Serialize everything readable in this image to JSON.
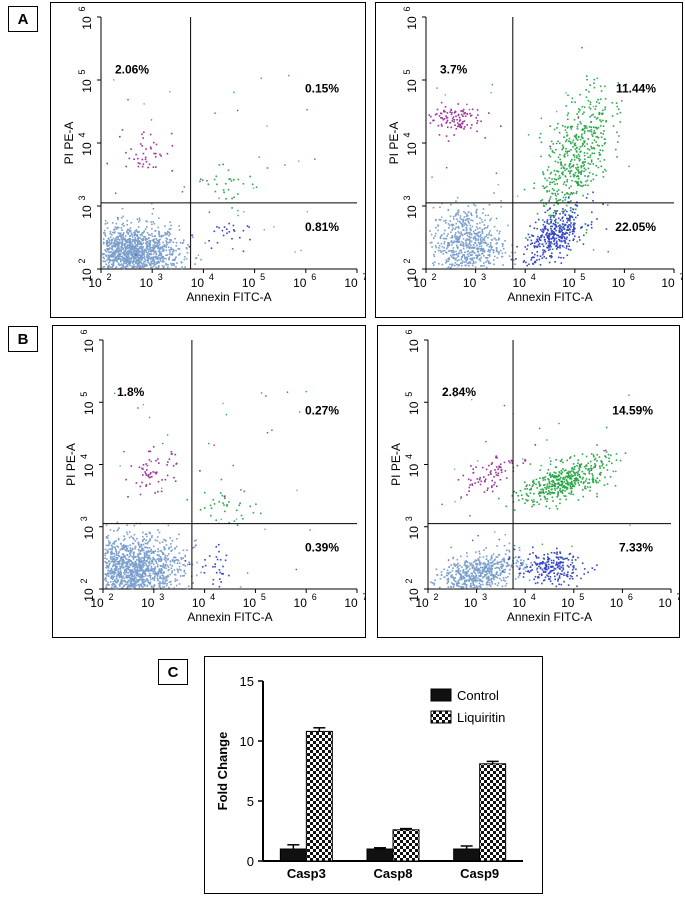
{
  "panels": {
    "a": "A",
    "b": "B",
    "c": "C"
  },
  "flow": {
    "xlabel": "Annexin FITC-A",
    "ylabel": "PI PE-A",
    "xticks": [
      {
        "base": "10",
        "exp": "2"
      },
      {
        "base": "10",
        "exp": "3"
      },
      {
        "base": "10",
        "exp": "4"
      },
      {
        "base": "10",
        "exp": "5"
      },
      {
        "base": "10",
        "exp": "6"
      },
      {
        "base": "10",
        "exp": "7"
      }
    ],
    "yticks": [
      {
        "base": "10",
        "exp": "2"
      },
      {
        "base": "10",
        "exp": "3"
      },
      {
        "base": "10",
        "exp": "4"
      },
      {
        "base": "10",
        "exp": "5"
      },
      {
        "base": "10",
        "exp": "6"
      }
    ],
    "plots": [
      {
        "ul": "2.06%",
        "ur": "0.15%",
        "lr": "0.81%"
      },
      {
        "ul": "3.7%",
        "ur": "11.44%",
        "lr": "22.05%"
      },
      {
        "ul": "1.8%",
        "ur": "0.27%",
        "lr": "0.39%"
      },
      {
        "ul": "2.84%",
        "ur": "14.59%",
        "lr": "7.33%"
      }
    ]
  },
  "chart_data": [
    {
      "type": "scatter",
      "title": "",
      "xlabel": "Annexin FITC-A",
      "ylabel": "PI PE-A",
      "xscale": "log",
      "yscale": "log",
      "xlim": [
        100,
        10000000
      ],
      "ylim": [
        100,
        1000000
      ],
      "quadrants": {
        "upper_left": "2.06%",
        "upper_right": "0.15%",
        "lower_right": "0.81%"
      }
    },
    {
      "type": "scatter",
      "title": "",
      "xlabel": "Annexin FITC-A",
      "ylabel": "PI PE-A",
      "xscale": "log",
      "yscale": "log",
      "xlim": [
        100,
        10000000
      ],
      "ylim": [
        100,
        1000000
      ],
      "quadrants": {
        "upper_left": "3.7%",
        "upper_right": "11.44%",
        "lower_right": "22.05%"
      }
    },
    {
      "type": "scatter",
      "title": "",
      "xlabel": "Annexin FITC-A",
      "ylabel": "PI PE-A",
      "xscale": "log",
      "yscale": "log",
      "xlim": [
        100,
        10000000
      ],
      "ylim": [
        100,
        1000000
      ],
      "quadrants": {
        "upper_left": "1.8%",
        "upper_right": "0.27%",
        "lower_right": "0.39%"
      }
    },
    {
      "type": "scatter",
      "title": "",
      "xlabel": "Annexin FITC-A",
      "ylabel": "PI PE-A",
      "xscale": "log",
      "yscale": "log",
      "xlim": [
        100,
        10000000
      ],
      "ylim": [
        100,
        1000000
      ],
      "quadrants": {
        "upper_left": "2.84%",
        "upper_right": "14.59%",
        "lower_right": "7.33%"
      }
    },
    {
      "type": "bar",
      "title": "",
      "xlabel": "",
      "ylabel": "Fold Change",
      "categories": [
        "Casp3",
        "Casp8",
        "Casp9"
      ],
      "series": [
        {
          "name": "Control",
          "values": [
            1.0,
            1.0,
            1.0
          ],
          "errors": [
            0.35,
            0.1,
            0.25
          ]
        },
        {
          "name": "Liquiritin",
          "values": [
            10.8,
            2.6,
            8.1
          ],
          "errors": [
            0.3,
            0.1,
            0.2
          ]
        }
      ],
      "ylim": [
        0,
        15
      ],
      "yticks": [
        0,
        5,
        10,
        15
      ],
      "legend": "top-right"
    }
  ],
  "colors": {
    "live": "#7b9fcc",
    "early": "#3545c8",
    "late": "#2aa94a",
    "necrotic": "#a0309a",
    "bar_control": "#111111",
    "bar_treated_bg": "#ffffff"
  }
}
